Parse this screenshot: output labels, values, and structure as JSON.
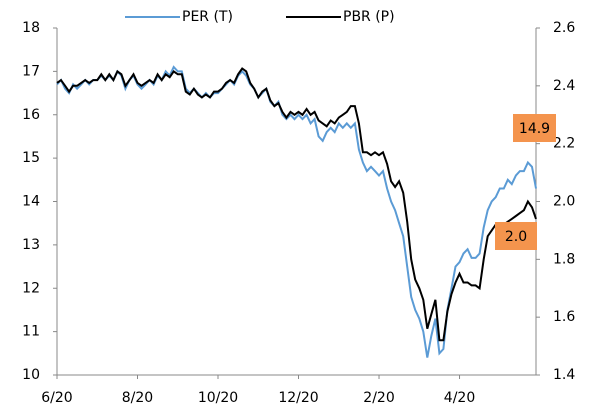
{
  "chart_data": {
    "type": "line",
    "categories": [
      "6/20",
      null,
      null,
      null,
      null,
      null,
      null,
      null,
      null,
      null,
      null,
      null,
      null,
      null,
      null,
      null,
      null,
      null,
      null,
      null,
      "8/20",
      null,
      null,
      null,
      null,
      null,
      null,
      null,
      null,
      null,
      null,
      null,
      null,
      null,
      null,
      null,
      null,
      null,
      null,
      null,
      "10/20",
      null,
      null,
      null,
      null,
      null,
      null,
      null,
      null,
      null,
      null,
      null,
      null,
      null,
      null,
      null,
      null,
      null,
      null,
      null,
      "12/20",
      null,
      null,
      null,
      null,
      null,
      null,
      null,
      null,
      null,
      null,
      null,
      null,
      null,
      null,
      null,
      null,
      null,
      null,
      null,
      "2/20",
      null,
      null,
      null,
      null,
      null,
      null,
      null,
      null,
      null,
      null,
      null,
      null,
      null,
      null,
      null,
      null,
      null,
      null,
      null,
      "4/20",
      null,
      null,
      null,
      null,
      null,
      null,
      null,
      null,
      null,
      null,
      null,
      null,
      null,
      null,
      null,
      null,
      null,
      null,
      null
    ],
    "series": [
      {
        "name": "PER (T)",
        "color": "#5b9bd5",
        "axis": "y",
        "values": [
          16.7,
          16.8,
          16.6,
          16.5,
          16.7,
          16.6,
          16.7,
          16.8,
          16.7,
          16.8,
          16.8,
          16.9,
          16.8,
          16.9,
          16.8,
          17.0,
          16.9,
          16.6,
          16.8,
          16.9,
          16.7,
          16.6,
          16.7,
          16.8,
          16.7,
          16.9,
          16.8,
          17.0,
          16.9,
          17.1,
          17.0,
          17.0,
          16.6,
          16.5,
          16.6,
          16.5,
          16.4,
          16.5,
          16.4,
          16.5,
          16.5,
          16.6,
          16.7,
          16.8,
          16.7,
          16.9,
          17.0,
          16.9,
          16.7,
          16.6,
          16.4,
          16.5,
          16.6,
          16.3,
          16.2,
          16.3,
          16.0,
          15.9,
          16.0,
          15.9,
          16.0,
          15.9,
          16.0,
          15.8,
          15.9,
          15.5,
          15.4,
          15.6,
          15.7,
          15.6,
          15.8,
          15.7,
          15.8,
          15.7,
          15.8,
          15.2,
          14.9,
          14.7,
          14.8,
          14.7,
          14.6,
          14.7,
          14.3,
          14.0,
          13.8,
          13.5,
          13.2,
          12.5,
          11.8,
          11.5,
          11.3,
          11.0,
          10.4,
          10.9,
          11.3,
          10.5,
          10.6,
          11.5,
          12.0,
          12.5,
          12.6,
          12.8,
          12.9,
          12.7,
          12.7,
          12.8,
          13.4,
          13.8,
          14.0,
          14.1,
          14.3,
          14.3,
          14.5,
          14.4,
          14.6,
          14.7,
          14.7,
          14.9,
          14.8,
          14.3
        ]
      },
      {
        "name": "PBR (P)",
        "color": "#000000",
        "axis": "y2",
        "values": [
          2.41,
          2.42,
          2.4,
          2.38,
          2.4,
          2.4,
          2.41,
          2.42,
          2.41,
          2.42,
          2.42,
          2.44,
          2.42,
          2.44,
          2.42,
          2.45,
          2.44,
          2.4,
          2.42,
          2.44,
          2.41,
          2.4,
          2.41,
          2.42,
          2.41,
          2.44,
          2.42,
          2.44,
          2.43,
          2.45,
          2.44,
          2.44,
          2.38,
          2.37,
          2.39,
          2.37,
          2.36,
          2.37,
          2.36,
          2.38,
          2.38,
          2.39,
          2.41,
          2.42,
          2.41,
          2.44,
          2.46,
          2.45,
          2.41,
          2.39,
          2.36,
          2.38,
          2.39,
          2.35,
          2.33,
          2.34,
          2.31,
          2.29,
          2.31,
          2.3,
          2.31,
          2.3,
          2.32,
          2.3,
          2.31,
          2.28,
          2.27,
          2.26,
          2.28,
          2.27,
          2.29,
          2.3,
          2.31,
          2.33,
          2.33,
          2.27,
          2.17,
          2.17,
          2.16,
          2.17,
          2.16,
          2.17,
          2.13,
          2.07,
          2.05,
          2.07,
          2.03,
          1.93,
          1.8,
          1.73,
          1.7,
          1.66,
          1.56,
          1.61,
          1.66,
          1.52,
          1.52,
          1.62,
          1.68,
          1.72,
          1.75,
          1.72,
          1.72,
          1.71,
          1.71,
          1.7,
          1.8,
          1.88,
          1.9,
          1.92,
          1.91,
          1.92,
          1.93,
          1.94,
          1.95,
          1.96,
          1.97,
          2.0,
          1.98,
          1.94
        ]
      }
    ],
    "ylim": [
      10,
      18
    ],
    "yticks": [
      10,
      11,
      12,
      13,
      14,
      15,
      16,
      17,
      18
    ],
    "y2lim": [
      1.4,
      2.6
    ],
    "y2ticks": [
      1.4,
      1.6,
      1.8,
      {
        "value": 2,
        "label": "2.0"
      },
      2.2,
      2.4,
      2.6
    ],
    "annotations": [
      "14.9",
      "2.0"
    ],
    "annotation_color": "#f4944d"
  }
}
